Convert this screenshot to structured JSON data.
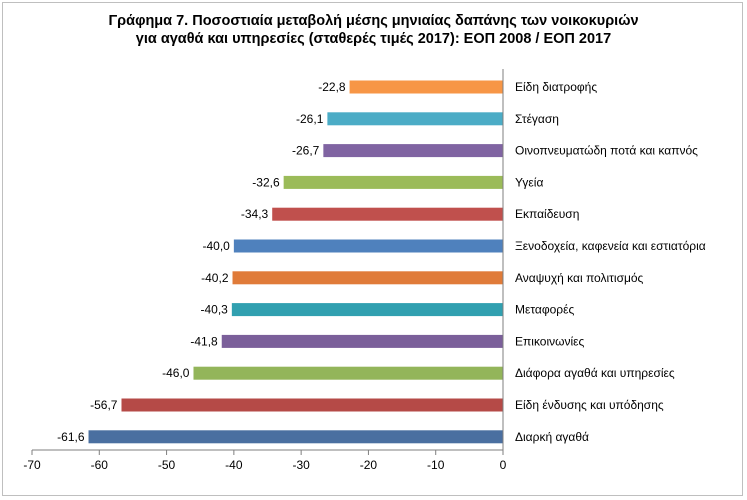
{
  "title": {
    "line1": "Γράφημα 7. Ποσοστιαία μεταβολή μέσης μηνιαίας δαπάνης των νοικοκυριών",
    "line2": "για αγαθά και υπηρεσίες (σταθερές τιμές 2017): ΕΟΠ 2008 / ΕΟΠ 2017"
  },
  "chart_data": {
    "type": "bar",
    "orientation": "horizontal",
    "title": "Γράφημα 7. Ποσοστιαία μεταβολή μέσης μηνιαίας δαπάνης των νοικοκυριών για αγαθά και υπηρεσίες (σταθερές τιμές 2017): ΕΟΠ 2008 / ΕΟΠ 2017",
    "xlim": [
      -70,
      0
    ],
    "xticks": [
      -70,
      -60,
      -50,
      -40,
      -30,
      -20,
      -10,
      0
    ],
    "grid": false,
    "categories": [
      {
        "label": "Είδη διατροφής",
        "value": -22.8,
        "value_label": "-22,8",
        "color": "#f79646"
      },
      {
        "label": "Στέγαση",
        "value": -26.1,
        "value_label": "-26,1",
        "color": "#4bacc6"
      },
      {
        "label": "Οινοπνευματώδη ποτά και καπνός",
        "value": -26.7,
        "value_label": "-26,7",
        "color": "#8064a2"
      },
      {
        "label": "Υγεία",
        "value": -32.6,
        "value_label": "-32,6",
        "color": "#9bbb59"
      },
      {
        "label": "Εκπαίδευση",
        "value": -34.3,
        "value_label": "-34,3",
        "color": "#c0504d"
      },
      {
        "label": "Ξενοδοχεία, καφενεία και εστιατόρια",
        "value": -40.0,
        "value_label": "-40,0",
        "color": "#4f81bd"
      },
      {
        "label": "Αναψυχή και πολιτισμός",
        "value": -40.2,
        "value_label": "-40,2",
        "color": "#e07b39"
      },
      {
        "label": "Μεταφορές",
        "value": -40.3,
        "value_label": "-40,3",
        "color": "#31a0b0"
      },
      {
        "label": "Επικοινωνίες",
        "value": -41.8,
        "value_label": "-41,8",
        "color": "#7b5f9a"
      },
      {
        "label": "Διάφορα αγαθά και υπηρεσίες",
        "value": -46.0,
        "value_label": "-46,0",
        "color": "#93b55a"
      },
      {
        "label": "Είδη ένδυσης και υπόδησης",
        "value": -56.7,
        "value_label": "-56,7",
        "color": "#b54a47"
      },
      {
        "label": "Διαρκή αγαθά",
        "value": -61.6,
        "value_label": "-61,6",
        "color": "#4a6fa0"
      }
    ]
  }
}
